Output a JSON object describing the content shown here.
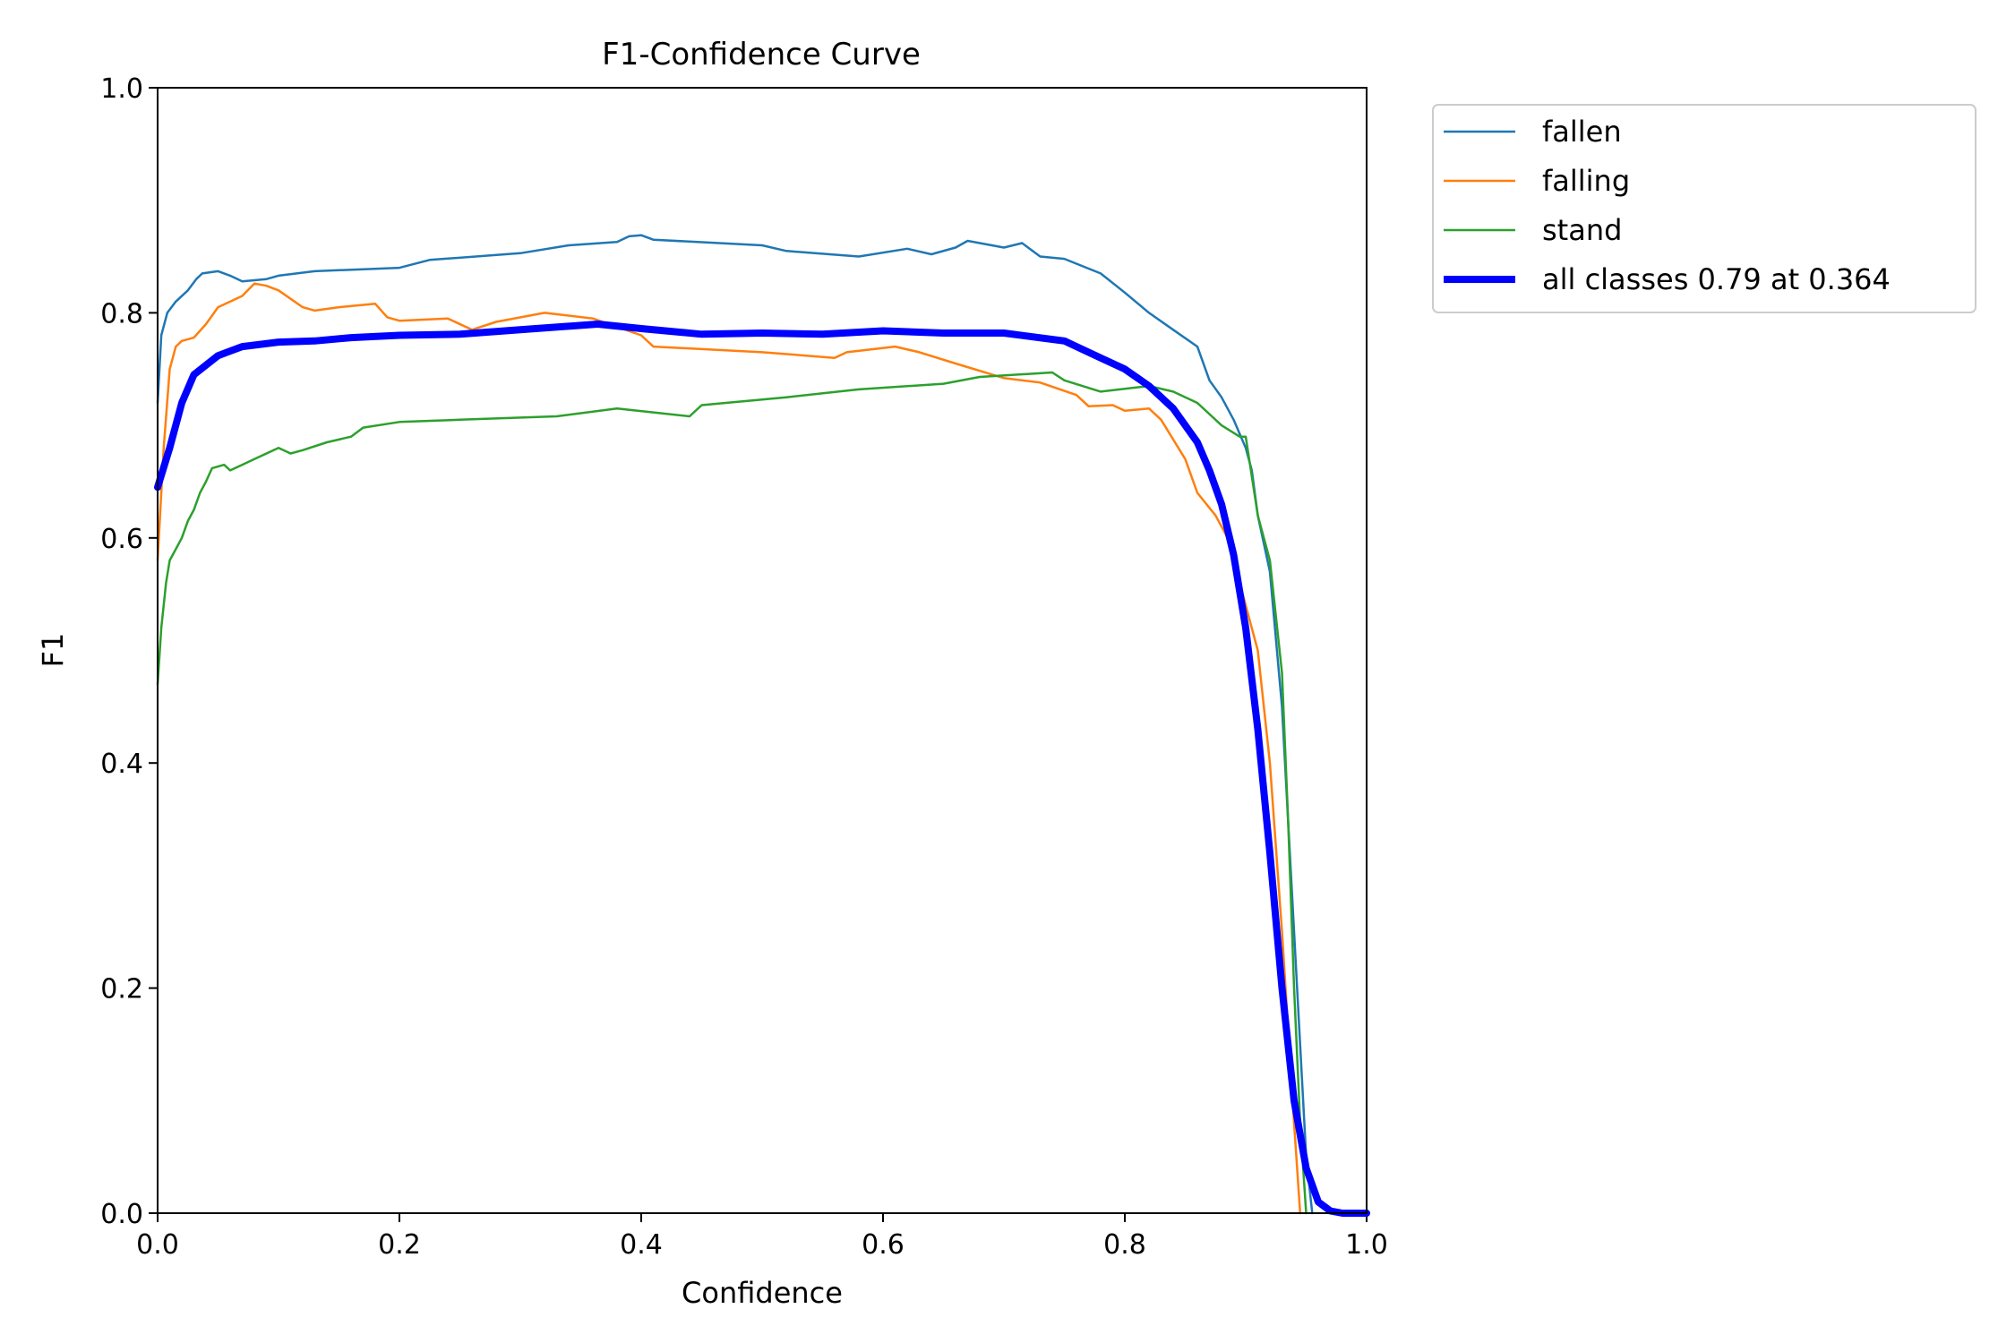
{
  "chart_data": {
    "type": "line",
    "title": "F1-Confidence Curve",
    "xlabel": "Confidence",
    "ylabel": "F1",
    "xlim": [
      0,
      1
    ],
    "ylim": [
      0,
      1
    ],
    "xticks": [
      "0.0",
      "0.2",
      "0.4",
      "0.6",
      "0.8",
      "1.0"
    ],
    "yticks": [
      "0.0",
      "0.2",
      "0.4",
      "0.6",
      "0.8",
      "1.0"
    ],
    "grid": false,
    "legend_position": "outside upper right",
    "series": [
      {
        "name": "fallen",
        "color": "#1f77b4",
        "width": "thin",
        "points": [
          [
            0,
            0.72
          ],
          [
            0.003,
            0.78
          ],
          [
            0.008,
            0.8
          ],
          [
            0.015,
            0.81
          ],
          [
            0.025,
            0.82
          ],
          [
            0.032,
            0.83
          ],
          [
            0.037,
            0.835
          ],
          [
            0.05,
            0.837
          ],
          [
            0.06,
            0.833
          ],
          [
            0.07,
            0.828
          ],
          [
            0.09,
            0.83
          ],
          [
            0.1,
            0.833
          ],
          [
            0.13,
            0.837
          ],
          [
            0.2,
            0.84
          ],
          [
            0.225,
            0.847
          ],
          [
            0.3,
            0.853
          ],
          [
            0.34,
            0.86
          ],
          [
            0.38,
            0.863
          ],
          [
            0.39,
            0.868
          ],
          [
            0.4,
            0.869
          ],
          [
            0.41,
            0.865
          ],
          [
            0.5,
            0.86
          ],
          [
            0.52,
            0.855
          ],
          [
            0.58,
            0.85
          ],
          [
            0.62,
            0.857
          ],
          [
            0.64,
            0.852
          ],
          [
            0.66,
            0.858
          ],
          [
            0.67,
            0.864
          ],
          [
            0.7,
            0.858
          ],
          [
            0.715,
            0.862
          ],
          [
            0.73,
            0.85
          ],
          [
            0.75,
            0.848
          ],
          [
            0.78,
            0.835
          ],
          [
            0.8,
            0.818
          ],
          [
            0.82,
            0.8
          ],
          [
            0.84,
            0.785
          ],
          [
            0.86,
            0.77
          ],
          [
            0.87,
            0.74
          ],
          [
            0.88,
            0.725
          ],
          [
            0.89,
            0.705
          ],
          [
            0.9,
            0.68
          ],
          [
            0.905,
            0.66
          ],
          [
            0.91,
            0.62
          ],
          [
            0.92,
            0.57
          ],
          [
            0.93,
            0.45
          ],
          [
            0.94,
            0.25
          ],
          [
            0.95,
            0.05
          ],
          [
            0.955,
            0.0
          ]
        ]
      },
      {
        "name": "falling",
        "color": "#ff7f0e",
        "width": "thin",
        "points": [
          [
            0,
            0.58
          ],
          [
            0.005,
            0.68
          ],
          [
            0.01,
            0.75
          ],
          [
            0.015,
            0.77
          ],
          [
            0.02,
            0.775
          ],
          [
            0.03,
            0.778
          ],
          [
            0.04,
            0.79
          ],
          [
            0.05,
            0.805
          ],
          [
            0.07,
            0.815
          ],
          [
            0.08,
            0.826
          ],
          [
            0.09,
            0.824
          ],
          [
            0.1,
            0.82
          ],
          [
            0.12,
            0.805
          ],
          [
            0.13,
            0.802
          ],
          [
            0.15,
            0.805
          ],
          [
            0.18,
            0.808
          ],
          [
            0.19,
            0.796
          ],
          [
            0.2,
            0.793
          ],
          [
            0.24,
            0.795
          ],
          [
            0.26,
            0.785
          ],
          [
            0.28,
            0.792
          ],
          [
            0.32,
            0.8
          ],
          [
            0.36,
            0.795
          ],
          [
            0.4,
            0.78
          ],
          [
            0.41,
            0.77
          ],
          [
            0.5,
            0.765
          ],
          [
            0.56,
            0.76
          ],
          [
            0.57,
            0.765
          ],
          [
            0.61,
            0.77
          ],
          [
            0.63,
            0.765
          ],
          [
            0.66,
            0.755
          ],
          [
            0.7,
            0.742
          ],
          [
            0.73,
            0.738
          ],
          [
            0.76,
            0.727
          ],
          [
            0.77,
            0.717
          ],
          [
            0.79,
            0.718
          ],
          [
            0.8,
            0.713
          ],
          [
            0.82,
            0.715
          ],
          [
            0.83,
            0.705
          ],
          [
            0.85,
            0.67
          ],
          [
            0.86,
            0.64
          ],
          [
            0.875,
            0.62
          ],
          [
            0.885,
            0.6
          ],
          [
            0.89,
            0.58
          ],
          [
            0.9,
            0.54
          ],
          [
            0.91,
            0.5
          ],
          [
            0.92,
            0.4
          ],
          [
            0.93,
            0.25
          ],
          [
            0.94,
            0.08
          ],
          [
            0.945,
            0.0
          ]
        ]
      },
      {
        "name": "stand",
        "color": "#2ca02c",
        "width": "thin",
        "points": [
          [
            0,
            0.47
          ],
          [
            0.003,
            0.52
          ],
          [
            0.007,
            0.56
          ],
          [
            0.01,
            0.58
          ],
          [
            0.015,
            0.59
          ],
          [
            0.02,
            0.6
          ],
          [
            0.025,
            0.615
          ],
          [
            0.03,
            0.625
          ],
          [
            0.035,
            0.64
          ],
          [
            0.04,
            0.65
          ],
          [
            0.045,
            0.662
          ],
          [
            0.055,
            0.665
          ],
          [
            0.06,
            0.66
          ],
          [
            0.07,
            0.665
          ],
          [
            0.08,
            0.67
          ],
          [
            0.1,
            0.68
          ],
          [
            0.11,
            0.675
          ],
          [
            0.12,
            0.678
          ],
          [
            0.14,
            0.685
          ],
          [
            0.16,
            0.69
          ],
          [
            0.17,
            0.698
          ],
          [
            0.2,
            0.703
          ],
          [
            0.25,
            0.705
          ],
          [
            0.33,
            0.708
          ],
          [
            0.38,
            0.715
          ],
          [
            0.44,
            0.708
          ],
          [
            0.45,
            0.718
          ],
          [
            0.52,
            0.725
          ],
          [
            0.58,
            0.732
          ],
          [
            0.65,
            0.737
          ],
          [
            0.68,
            0.743
          ],
          [
            0.74,
            0.747
          ],
          [
            0.75,
            0.74
          ],
          [
            0.78,
            0.73
          ],
          [
            0.82,
            0.735
          ],
          [
            0.84,
            0.73
          ],
          [
            0.86,
            0.72
          ],
          [
            0.88,
            0.7
          ],
          [
            0.895,
            0.69
          ],
          [
            0.9,
            0.69
          ],
          [
            0.91,
            0.62
          ],
          [
            0.92,
            0.58
          ],
          [
            0.93,
            0.48
          ],
          [
            0.935,
            0.35
          ],
          [
            0.94,
            0.2
          ],
          [
            0.945,
            0.08
          ],
          [
            0.95,
            0.0
          ]
        ]
      },
      {
        "name": "all classes 0.79 at 0.364",
        "color": "#0000ff",
        "width": "thick",
        "points": [
          [
            0,
            0.645
          ],
          [
            0.01,
            0.68
          ],
          [
            0.02,
            0.72
          ],
          [
            0.03,
            0.745
          ],
          [
            0.05,
            0.762
          ],
          [
            0.07,
            0.77
          ],
          [
            0.1,
            0.774
          ],
          [
            0.13,
            0.775
          ],
          [
            0.16,
            0.778
          ],
          [
            0.2,
            0.78
          ],
          [
            0.25,
            0.781
          ],
          [
            0.3,
            0.785
          ],
          [
            0.364,
            0.79
          ],
          [
            0.4,
            0.786
          ],
          [
            0.45,
            0.781
          ],
          [
            0.5,
            0.782
          ],
          [
            0.55,
            0.781
          ],
          [
            0.6,
            0.784
          ],
          [
            0.65,
            0.782
          ],
          [
            0.7,
            0.782
          ],
          [
            0.75,
            0.775
          ],
          [
            0.78,
            0.76
          ],
          [
            0.8,
            0.75
          ],
          [
            0.82,
            0.735
          ],
          [
            0.84,
            0.715
          ],
          [
            0.86,
            0.685
          ],
          [
            0.87,
            0.66
          ],
          [
            0.88,
            0.63
          ],
          [
            0.89,
            0.585
          ],
          [
            0.9,
            0.52
          ],
          [
            0.91,
            0.43
          ],
          [
            0.92,
            0.32
          ],
          [
            0.93,
            0.2
          ],
          [
            0.94,
            0.1
          ],
          [
            0.95,
            0.04
          ],
          [
            0.96,
            0.01
          ],
          [
            0.97,
            0.002
          ],
          [
            0.98,
            0.0
          ],
          [
            1.0,
            0.0
          ]
        ]
      }
    ]
  }
}
